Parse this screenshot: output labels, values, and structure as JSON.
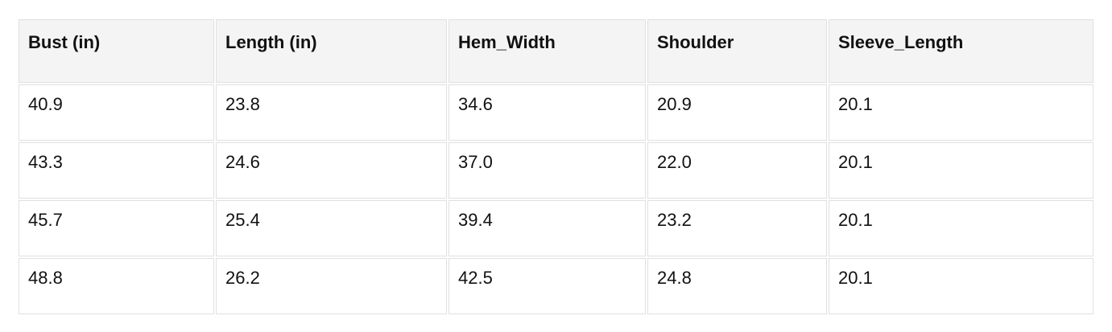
{
  "colors": {
    "header_background": "#f4f4f4",
    "cell_border": "#e0e0e0",
    "text": "#111111",
    "row_background": "#ffffff"
  },
  "table": {
    "columns": [
      "Bust (in)",
      "Length (in)",
      "Hem_Width",
      "Shoulder",
      "Sleeve_Length"
    ],
    "rows": [
      [
        "40.9",
        "23.8",
        "34.6",
        "20.9",
        "20.1"
      ],
      [
        "43.3",
        "24.6",
        "37.0",
        "22.0",
        "20.1"
      ],
      [
        "45.7",
        "25.4",
        "39.4",
        "23.2",
        "20.1"
      ],
      [
        "48.8",
        "26.2",
        "42.5",
        "24.8",
        "20.1"
      ]
    ]
  },
  "chart_data": {
    "type": "table",
    "title": "",
    "columns": [
      "Bust (in)",
      "Length (in)",
      "Hem_Width",
      "Shoulder",
      "Sleeve_Length"
    ],
    "rows": [
      [
        40.9,
        23.8,
        34.6,
        20.9,
        20.1
      ],
      [
        43.3,
        24.6,
        37.0,
        22.0,
        20.1
      ],
      [
        45.7,
        25.4,
        39.4,
        23.2,
        20.1
      ],
      [
        48.8,
        26.2,
        42.5,
        24.8,
        20.1
      ]
    ]
  }
}
